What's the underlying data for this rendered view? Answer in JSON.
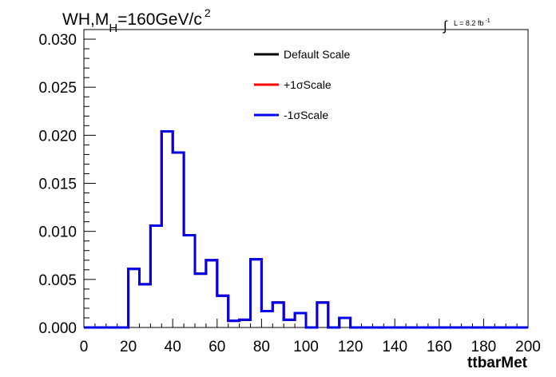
{
  "chart_data": {
    "type": "line",
    "title_parts": {
      "main": "WH,M",
      "sub": "H",
      "rest": "=160GeV/c",
      "sup": "2"
    },
    "lumi": {
      "integral_symbol": "∫",
      "text": "L = 8.2 fb",
      "sup": "-1"
    },
    "xlabel": "ttbarMet",
    "ylabel": "",
    "xlim": [
      0,
      200
    ],
    "ylim": [
      0,
      0.031
    ],
    "x_ticks": [
      "0",
      "20",
      "40",
      "60",
      "80",
      "100",
      "120",
      "140",
      "160",
      "180",
      "200"
    ],
    "x_tick_values": [
      0,
      20,
      40,
      60,
      80,
      100,
      120,
      140,
      160,
      180,
      200
    ],
    "y_ticks": [
      "0.000",
      "0.005",
      "0.010",
      "0.015",
      "0.020",
      "0.025",
      "0.030"
    ],
    "y_tick_values": [
      0,
      0.005,
      0.01,
      0.015,
      0.02,
      0.025,
      0.03
    ],
    "legend_position": "top-center",
    "bin_width": 5,
    "bin_edges_start": 0,
    "series": [
      {
        "name": "Default Scale",
        "color": "#000000",
        "values": [
          0,
          0,
          0,
          0,
          0.0061,
          0.0045,
          0.0106,
          0.0204,
          0.0182,
          0.0096,
          0.0056,
          0.007,
          0.0033,
          0.0007,
          0.0008,
          0.0071,
          0.0017,
          0.0026,
          0.0008,
          0.0015,
          0,
          0.0026,
          0,
          0.001,
          0,
          0,
          0,
          0,
          0,
          0,
          0,
          0,
          0,
          0,
          0,
          0,
          0,
          0,
          0,
          0
        ]
      },
      {
        "name": "+1σScale",
        "color": "#ff0000",
        "values": [
          0,
          0,
          0,
          0,
          0.0061,
          0.0045,
          0.0106,
          0.0204,
          0.0182,
          0.0096,
          0.0056,
          0.007,
          0.0033,
          0.0007,
          0.0008,
          0.0071,
          0.0017,
          0.0026,
          0.0008,
          0.0015,
          0,
          0.0026,
          0,
          0.001,
          0,
          0,
          0,
          0,
          0,
          0,
          0,
          0,
          0,
          0,
          0,
          0,
          0,
          0,
          0,
          0
        ]
      },
      {
        "name": "-1σScale",
        "color": "#0000ee",
        "values": [
          0,
          0,
          0,
          0,
          0.0061,
          0.0045,
          0.0106,
          0.0204,
          0.0182,
          0.0096,
          0.0056,
          0.007,
          0.0033,
          0.0007,
          0.0008,
          0.0071,
          0.0017,
          0.0026,
          0.0008,
          0.0015,
          0,
          0.0026,
          0,
          0.001,
          0,
          0,
          0,
          0,
          0,
          0,
          0,
          0,
          0,
          0,
          0,
          0,
          0,
          0,
          0,
          0
        ]
      }
    ]
  }
}
